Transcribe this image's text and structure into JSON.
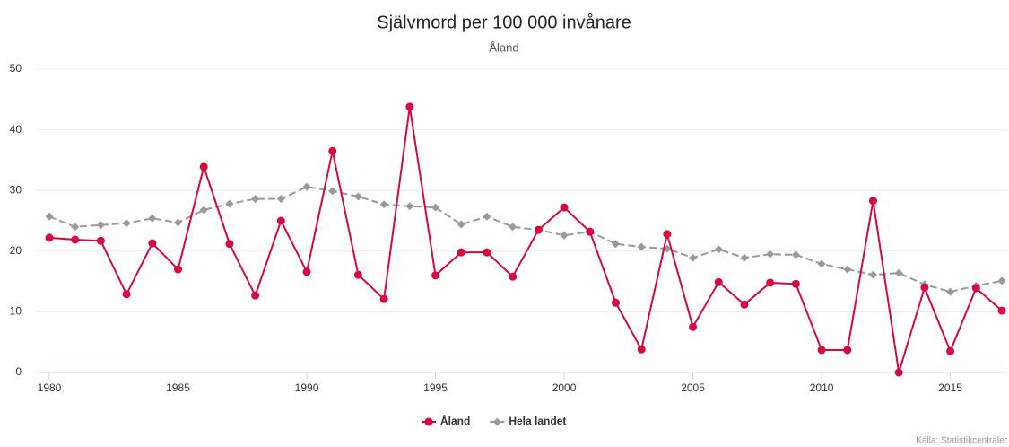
{
  "chart_data": {
    "type": "line",
    "title": "Självmord per 100 000 invånare",
    "subtitle": "Åland",
    "source": "Källa: Statistikcentraler",
    "x": [
      1980,
      1981,
      1982,
      1983,
      1984,
      1985,
      1986,
      1987,
      1988,
      1989,
      1990,
      1991,
      1992,
      1993,
      1994,
      1995,
      1996,
      1997,
      1998,
      1999,
      2000,
      2001,
      2002,
      2003,
      2004,
      2005,
      2006,
      2007,
      2008,
      2009,
      2010,
      2011,
      2012,
      2013,
      2014,
      2015,
      2016,
      2017
    ],
    "series": [
      {
        "name": "Åland",
        "color": "#d9083c",
        "dashed": false,
        "marker": "circle",
        "values": [
          22.2,
          21.9,
          21.7,
          12.9,
          21.3,
          17.0,
          33.9,
          21.2,
          12.7,
          25.0,
          16.6,
          36.5,
          16.1,
          12.1,
          43.8,
          16.0,
          19.8,
          19.8,
          15.8,
          23.5,
          27.2,
          23.2,
          11.5,
          3.8,
          22.8,
          7.5,
          14.9,
          11.2,
          14.8,
          14.6,
          3.7,
          3.7,
          28.3,
          0,
          14.0,
          3.5,
          13.9,
          10.2
        ]
      },
      {
        "name": "Hela landet",
        "color": "#999999",
        "dashed": true,
        "marker": "diamond",
        "values": [
          25.7,
          24.0,
          24.3,
          24.6,
          25.4,
          24.7,
          26.8,
          27.8,
          28.6,
          28.6,
          30.6,
          29.9,
          29.0,
          27.7,
          27.4,
          27.2,
          24.4,
          25.7,
          24.0,
          23.5,
          22.6,
          23.2,
          21.2,
          20.7,
          20.4,
          18.9,
          20.3,
          18.9,
          19.5,
          19.4,
          17.9,
          17.0,
          16.1,
          16.4,
          14.5,
          13.3,
          14.3,
          15.1
        ]
      }
    ],
    "xlim": [
      1980,
      2017
    ],
    "xticks": [
      1980,
      1985,
      1990,
      1995,
      2000,
      2005,
      2010,
      2015
    ],
    "ylim": [
      0,
      50
    ],
    "yticks": [
      0,
      10,
      20,
      30,
      40,
      50
    ],
    "grid": true,
    "legend": "bottom"
  }
}
